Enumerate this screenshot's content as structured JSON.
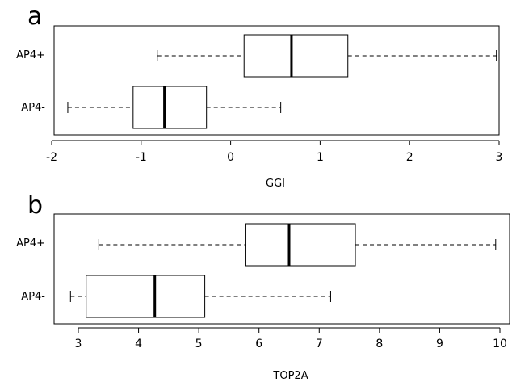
{
  "chart_data": [
    {
      "type": "boxplot",
      "panel_label": "a",
      "xlabel": "GGI",
      "ylabel": "",
      "title": "",
      "xlim": [
        -2,
        3
      ],
      "ticks": [
        -2,
        -1,
        0,
        1,
        2,
        3
      ],
      "tick_labels": [
        "-2",
        "-1",
        "0",
        "1",
        "2",
        "3"
      ],
      "grid": false,
      "categories": [
        "AP4+",
        "AP4-"
      ],
      "boxes": [
        {
          "category": "AP4+",
          "whisker_low": -0.82,
          "q1": 0.15,
          "median": 0.68,
          "q3": 1.31,
          "whisker_high": 2.97
        },
        {
          "category": "AP4-",
          "whisker_low": -1.82,
          "q1": -1.09,
          "median": -0.74,
          "q3": -0.27,
          "whisker_high": 0.56
        }
      ]
    },
    {
      "type": "boxplot",
      "panel_label": "b",
      "xlabel": "TOP2A",
      "ylabel": "",
      "title": "",
      "xlim": [
        3,
        10
      ],
      "ticks": [
        3,
        4,
        5,
        6,
        7,
        8,
        9,
        10
      ],
      "tick_labels": [
        "3",
        "4",
        "5",
        "6",
        "7",
        "8",
        "9",
        "10"
      ],
      "grid": false,
      "categories": [
        "AP4+",
        "AP4-"
      ],
      "boxes": [
        {
          "category": "AP4+",
          "whisker_low": 3.34,
          "q1": 5.77,
          "median": 6.5,
          "q3": 7.6,
          "whisker_high": 9.93
        },
        {
          "category": "AP4-",
          "whisker_low": 2.87,
          "q1": 3.13,
          "median": 4.27,
          "q3": 5.1,
          "whisker_high": 7.19
        }
      ]
    }
  ]
}
